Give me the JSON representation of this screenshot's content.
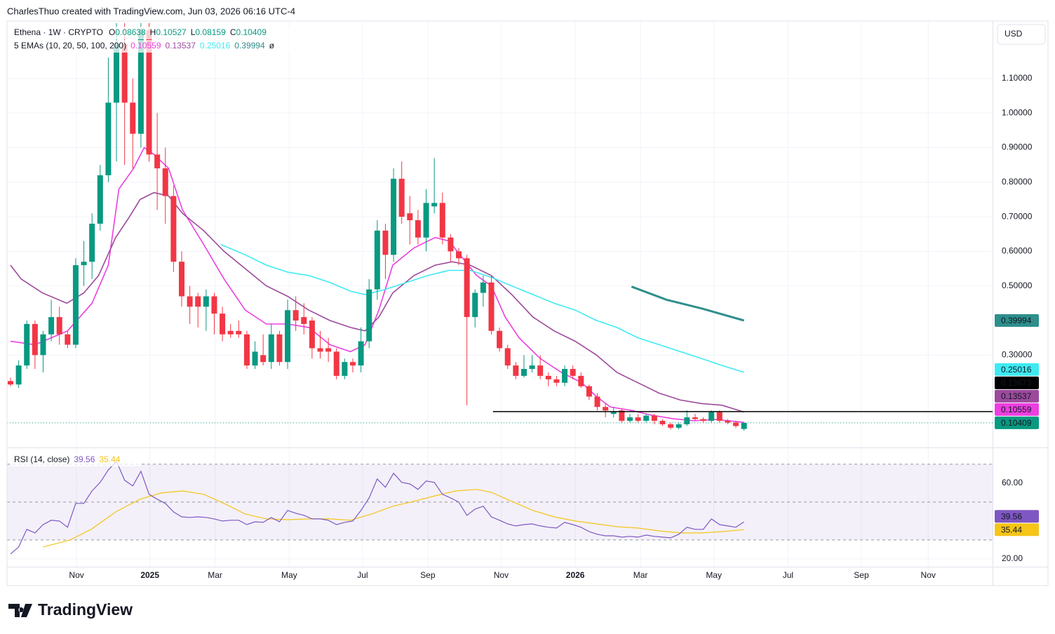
{
  "header": {
    "credit": "CharlesThuo created with TradingView.com, Jun 03, 2026 06:16 UTC-4",
    "currency": "USD"
  },
  "brand": "TradingView",
  "chart_data": {
    "type": "candlestick",
    "legend": {
      "symbol": "Ethena · 1W · CRYPTO",
      "ohlc_labels": [
        "O",
        "H",
        "L",
        "C"
      ]
    },
    "up_color": "#089981",
    "down_color": "#f23645",
    "candles": [
      [
        0.225,
        0.235,
        0.21,
        0.215
      ],
      [
        0.215,
        0.285,
        0.205,
        0.27
      ],
      [
        0.27,
        0.4,
        0.26,
        0.39
      ],
      [
        0.39,
        0.4,
        0.26,
        0.3
      ],
      [
        0.3,
        0.37,
        0.25,
        0.36
      ],
      [
        0.36,
        0.46,
        0.34,
        0.41
      ],
      [
        0.41,
        0.44,
        0.33,
        0.36
      ],
      [
        0.36,
        0.37,
        0.32,
        0.33
      ],
      [
        0.33,
        0.58,
        0.32,
        0.56
      ],
      [
        0.56,
        0.63,
        0.5,
        0.57
      ],
      [
        0.57,
        0.71,
        0.52,
        0.68
      ],
      [
        0.68,
        0.85,
        0.66,
        0.82
      ],
      [
        0.82,
        1.16,
        0.8,
        1.03
      ],
      [
        1.03,
        1.26,
        0.86,
        1.2
      ],
      [
        1.2,
        1.26,
        0.85,
        1.03
      ],
      [
        1.03,
        1.1,
        0.84,
        0.94
      ],
      [
        0.94,
        1.26,
        0.9,
        1.24
      ],
      [
        1.24,
        1.26,
        0.86,
        0.88
      ],
      [
        0.88,
        1.0,
        0.72,
        0.84
      ],
      [
        0.84,
        0.9,
        0.68,
        0.76
      ],
      [
        0.76,
        0.79,
        0.54,
        0.57
      ],
      [
        0.57,
        0.6,
        0.44,
        0.47
      ],
      [
        0.47,
        0.5,
        0.39,
        0.44
      ],
      [
        0.47,
        0.48,
        0.38,
        0.44
      ],
      [
        0.44,
        0.49,
        0.37,
        0.47
      ],
      [
        0.47,
        0.48,
        0.36,
        0.42
      ],
      [
        0.42,
        0.44,
        0.34,
        0.36
      ],
      [
        0.37,
        0.39,
        0.35,
        0.36
      ],
      [
        0.37,
        0.4,
        0.35,
        0.36
      ],
      [
        0.36,
        0.37,
        0.26,
        0.27
      ],
      [
        0.27,
        0.34,
        0.26,
        0.31
      ],
      [
        0.3,
        0.36,
        0.27,
        0.28
      ],
      [
        0.28,
        0.39,
        0.26,
        0.36
      ],
      [
        0.36,
        0.37,
        0.27,
        0.28
      ],
      [
        0.28,
        0.46,
        0.26,
        0.43
      ],
      [
        0.43,
        0.47,
        0.37,
        0.4
      ],
      [
        0.41,
        0.45,
        0.36,
        0.39
      ],
      [
        0.4,
        0.41,
        0.29,
        0.32
      ],
      [
        0.32,
        0.37,
        0.29,
        0.31
      ],
      [
        0.32,
        0.35,
        0.28,
        0.31
      ],
      [
        0.31,
        0.32,
        0.23,
        0.24
      ],
      [
        0.24,
        0.29,
        0.23,
        0.28
      ],
      [
        0.28,
        0.29,
        0.25,
        0.27
      ],
      [
        0.27,
        0.38,
        0.25,
        0.34
      ],
      [
        0.34,
        0.52,
        0.32,
        0.49
      ],
      [
        0.49,
        0.69,
        0.46,
        0.66
      ],
      [
        0.66,
        0.68,
        0.52,
        0.59
      ],
      [
        0.59,
        0.84,
        0.57,
        0.81
      ],
      [
        0.81,
        0.86,
        0.68,
        0.7
      ],
      [
        0.71,
        0.76,
        0.62,
        0.69
      ],
      [
        0.69,
        0.72,
        0.62,
        0.64
      ],
      [
        0.64,
        0.78,
        0.6,
        0.74
      ],
      [
        0.73,
        0.87,
        0.71,
        0.74
      ],
      [
        0.74,
        0.77,
        0.62,
        0.64
      ],
      [
        0.64,
        0.65,
        0.57,
        0.6
      ],
      [
        0.6,
        0.61,
        0.56,
        0.58
      ],
      [
        0.58,
        0.59,
        0.155,
        0.41
      ],
      [
        0.41,
        0.49,
        0.38,
        0.48
      ],
      [
        0.48,
        0.53,
        0.44,
        0.51
      ],
      [
        0.51,
        0.53,
        0.36,
        0.37
      ],
      [
        0.37,
        0.38,
        0.31,
        0.32
      ],
      [
        0.32,
        0.33,
        0.26,
        0.27
      ],
      [
        0.27,
        0.28,
        0.23,
        0.24
      ],
      [
        0.24,
        0.3,
        0.235,
        0.26
      ],
      [
        0.26,
        0.3,
        0.25,
        0.27
      ],
      [
        0.27,
        0.3,
        0.23,
        0.24
      ],
      [
        0.24,
        0.25,
        0.21,
        0.23
      ],
      [
        0.23,
        0.24,
        0.21,
        0.22
      ],
      [
        0.22,
        0.27,
        0.21,
        0.26
      ],
      [
        0.26,
        0.27,
        0.23,
        0.24
      ],
      [
        0.24,
        0.25,
        0.205,
        0.21
      ],
      [
        0.21,
        0.215,
        0.17,
        0.18
      ],
      [
        0.18,
        0.19,
        0.14,
        0.15
      ],
      [
        0.15,
        0.16,
        0.12,
        0.14
      ],
      [
        0.13,
        0.15,
        0.12,
        0.135
      ],
      [
        0.14,
        0.145,
        0.105,
        0.11
      ],
      [
        0.11,
        0.13,
        0.105,
        0.12
      ],
      [
        0.12,
        0.13,
        0.105,
        0.11
      ],
      [
        0.11,
        0.13,
        0.105,
        0.125
      ],
      [
        0.125,
        0.13,
        0.1,
        0.11
      ],
      [
        0.11,
        0.115,
        0.095,
        0.1
      ],
      [
        0.1,
        0.105,
        0.085,
        0.09
      ],
      [
        0.09,
        0.105,
        0.085,
        0.1
      ],
      [
        0.1,
        0.14,
        0.095,
        0.12
      ],
      [
        0.12,
        0.13,
        0.11,
        0.115
      ],
      [
        0.115,
        0.12,
        0.105,
        0.11
      ],
      [
        0.11,
        0.14,
        0.105,
        0.135
      ],
      [
        0.135,
        0.14,
        0.105,
        0.11
      ],
      [
        0.11,
        0.115,
        0.1,
        0.105
      ],
      [
        0.105,
        0.11,
        0.09,
        0.095
      ],
      [
        0.08638,
        0.10527,
        0.08159,
        0.10409
      ]
    ],
    "xlim": [
      -0.43,
      120.5
    ],
    "xticks": [
      {
        "value": 8.1,
        "label": "Nov"
      },
      {
        "value": 17.1,
        "label": "2025"
      },
      {
        "value": 25.1,
        "label": "Mar"
      },
      {
        "value": 34.2,
        "label": "May"
      },
      {
        "value": 43.2,
        "label": "Jul"
      },
      {
        "value": 51.2,
        "label": "Sep"
      },
      {
        "value": 60.2,
        "label": "Nov"
      },
      {
        "value": 69.3,
        "label": "2026"
      },
      {
        "value": 77.3,
        "label": "Mar"
      },
      {
        "value": 86.3,
        "label": "May"
      },
      {
        "value": 95.4,
        "label": "Jul"
      },
      {
        "value": 104.4,
        "label": "Sep"
      },
      {
        "value": 112.6,
        "label": "Nov"
      }
    ],
    "ylim": [
      0.035,
      1.266
    ],
    "yticks": [
      {
        "value": 0.3,
        "label": "0.30000"
      },
      {
        "value": 0.5,
        "label": "0.50000"
      },
      {
        "value": 0.6,
        "label": "0.60000"
      },
      {
        "value": 0.7,
        "label": "0.70000"
      },
      {
        "value": 0.8,
        "label": "0.80000"
      },
      {
        "value": 0.9,
        "label": "0.90000"
      },
      {
        "value": 1.0,
        "label": "1.00000"
      },
      {
        "value": 1.1,
        "label": "1.10000"
      }
    ],
    "grid": true,
    "hline": {
      "value": 0.13673,
      "x_start": 59.2,
      "color": "#000000"
    },
    "ema": {
      "title": "5 EMAs (10, 20, 50, 100, 200)",
      "missing_label": "ø",
      "series": [
        {
          "color": "#ec3fe0",
          "x": [
            0,
            3,
            7,
            10,
            12,
            13.3,
            15.1,
            16.4,
            17.6,
            19.4,
            21.1,
            23.7,
            26.2,
            28.8,
            31.4,
            34,
            36.6,
            39.2,
            41.7,
            43.5,
            45.2,
            46.9,
            49.5,
            52.1,
            53.8,
            55.5,
            57.2,
            59,
            60.7,
            62.4,
            65,
            67.6,
            70.1,
            71.9,
            73.6,
            76.2,
            78.7,
            81.3,
            83.9,
            86.5,
            90
          ],
          "values": [
            0.34,
            0.33,
            0.37,
            0.45,
            0.56,
            0.78,
            0.84,
            0.9,
            0.88,
            0.84,
            0.72,
            0.62,
            0.52,
            0.43,
            0.39,
            0.39,
            0.38,
            0.33,
            0.31,
            0.33,
            0.43,
            0.56,
            0.61,
            0.64,
            0.63,
            0.58,
            0.53,
            0.5,
            0.41,
            0.35,
            0.29,
            0.25,
            0.22,
            0.18,
            0.15,
            0.14,
            0.126,
            0.116,
            0.11,
            0.114,
            0.10559
          ]
        },
        {
          "color": "#9c4a9c",
          "x": [
            0,
            1.3,
            3.9,
            6.9,
            9,
            10.8,
            12.9,
            14.6,
            15.9,
            17.6,
            19.4,
            21.1,
            23.7,
            26.2,
            28.8,
            31.4,
            34,
            36.6,
            39.2,
            41.7,
            43.5,
            45.2,
            46.9,
            49.5,
            52.1,
            54.2,
            56.4,
            59,
            61.5,
            64.1,
            66.7,
            69.3,
            71.9,
            74.4,
            77,
            79.6,
            82.2,
            84.8,
            87.3,
            90
          ],
          "values": [
            0.56,
            0.52,
            0.48,
            0.45,
            0.48,
            0.53,
            0.64,
            0.7,
            0.75,
            0.77,
            0.76,
            0.71,
            0.66,
            0.6,
            0.55,
            0.5,
            0.47,
            0.43,
            0.4,
            0.38,
            0.37,
            0.41,
            0.48,
            0.53,
            0.56,
            0.57,
            0.56,
            0.53,
            0.475,
            0.41,
            0.37,
            0.34,
            0.3,
            0.25,
            0.22,
            0.19,
            0.17,
            0.16,
            0.155,
            0.13537
          ]
        },
        {
          "color": "#3eeaf2",
          "x": [
            25.8,
            28.8,
            31.4,
            34,
            36.6,
            39.2,
            41.7,
            43.5,
            46,
            48.6,
            51.2,
            53.8,
            56.4,
            59,
            61.5,
            64.1,
            66.7,
            69.3,
            71.9,
            74.4,
            77,
            79.6,
            82.2,
            84.8,
            87.3,
            90
          ],
          "values": [
            0.62,
            0.59,
            0.56,
            0.54,
            0.53,
            0.51,
            0.485,
            0.475,
            0.49,
            0.51,
            0.53,
            0.545,
            0.545,
            0.525,
            0.5,
            0.475,
            0.45,
            0.43,
            0.4,
            0.38,
            0.35,
            0.33,
            0.31,
            0.29,
            0.27,
            0.25016
          ]
        },
        {
          "color": "#2e8f8c",
          "x": [
            76.2,
            80.5,
            84.8,
            90
          ],
          "values": [
            0.498,
            0.46,
            0.435,
            0.39994
          ]
        }
      ]
    },
    "rsi": {
      "title": "RSI (14, close)",
      "color": "#7e57c2",
      "values": [
        22.6,
        26.3,
        35.6,
        33.7,
        38.1,
        40.4,
        40.0,
        36.7,
        49.3,
        49.3,
        55.9,
        60.4,
        67.0,
        71.5,
        61.5,
        58.5,
        66.3,
        54.1,
        51.5,
        49.3,
        44.8,
        42.2,
        41.9,
        42.2,
        41.9,
        41.1,
        40.0,
        40.4,
        40.4,
        38.1,
        39.6,
        39.3,
        41.9,
        39.6,
        45.6,
        44.1,
        43.0,
        41.1,
        41.1,
        40.4,
        38.1,
        39.3,
        40.0,
        45.6,
        52.2,
        62.2,
        57.8,
        65.2,
        60.4,
        59.6,
        56.7,
        61.1,
        60.4,
        54.1,
        52.2,
        50.0,
        43.0,
        46.3,
        47.8,
        42.2,
        40.4,
        38.5,
        37.4,
        38.1,
        38.5,
        37.4,
        36.7,
        36.3,
        39.3,
        38.1,
        36.7,
        34.4,
        33.0,
        32.2,
        32.2,
        31.5,
        31.9,
        31.5,
        32.6,
        31.9,
        31.5,
        31.1,
        33.0,
        36.7,
        35.6,
        35.6,
        41.1,
        38.1,
        37.4,
        36.7,
        39.56
      ],
      "ma": {
        "color": "#f5c518",
        "x": [
          4,
          7.3,
          9.9,
          12.9,
          15.9,
          18.5,
          21.1,
          23.7,
          26.2,
          28.8,
          31.4,
          34,
          36.6,
          39.2,
          41.7,
          44.3,
          46.9,
          49.5,
          52.1,
          54.6,
          57.2,
          59,
          61.5,
          64.1,
          66.7,
          69.3,
          71.9,
          74.4,
          77,
          79.6,
          82.2,
          84.8,
          87.3,
          90
        ],
        "values": [
          26.3,
          30.0,
          35.6,
          44.8,
          51.5,
          54.8,
          55.9,
          54.1,
          49.3,
          43.7,
          41.1,
          40.7,
          41.1,
          41.1,
          40.4,
          43.7,
          47.8,
          50.4,
          53.3,
          55.9,
          56.7,
          55.2,
          50.4,
          45.6,
          42.2,
          40.0,
          38.5,
          37.0,
          36.3,
          34.8,
          33.7,
          33.7,
          34.4,
          35.44
        ]
      },
      "ylim": [
        15.9,
        78.1
      ],
      "yticks": [
        {
          "value": 20,
          "label": "20.00"
        },
        {
          "value": 60,
          "label": "60.00"
        }
      ],
      "band": [
        30,
        70
      ],
      "mid": 50,
      "band_color": "#7e57c2"
    }
  }
}
